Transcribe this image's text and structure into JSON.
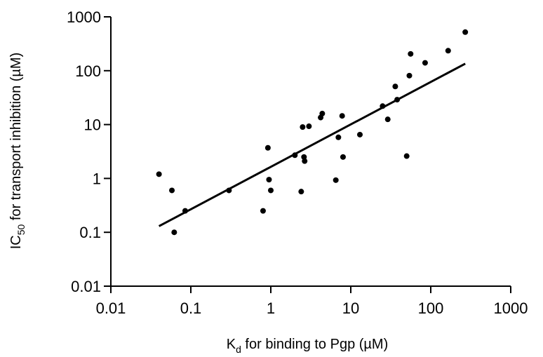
{
  "chart_data": {
    "type": "scatter",
    "title": "",
    "xlabel": {
      "main": "K",
      "sub": "d",
      "rest": " for binding to Pgp (µM)"
    },
    "ylabel": {
      "main": "IC",
      "sub": "50",
      "rest": " for transport inhibition (µM)"
    },
    "x_scale": "log",
    "y_scale": "log",
    "xlim": [
      0.01,
      1000
    ],
    "ylim": [
      0.01,
      1000
    ],
    "x_ticks": [
      0.01,
      0.1,
      1,
      10,
      100,
      1000
    ],
    "x_tick_labels": [
      "0.01",
      "0.1",
      "1",
      "10",
      "100",
      "1000"
    ],
    "y_ticks": [
      0.01,
      0.1,
      1,
      10,
      100,
      1000
    ],
    "y_tick_labels": [
      "0.01",
      "0.1",
      "1",
      "10",
      "100",
      "1000"
    ],
    "grid": false,
    "series": [
      {
        "points": [
          [
            0.04,
            1.2
          ],
          [
            0.058,
            0.6
          ],
          [
            0.062,
            0.1
          ],
          [
            0.085,
            0.25
          ],
          [
            0.3,
            0.6
          ],
          [
            0.8,
            0.25
          ],
          [
            0.92,
            3.7
          ],
          [
            0.95,
            0.95
          ],
          [
            1.0,
            0.6
          ],
          [
            2.0,
            2.7
          ],
          [
            2.4,
            0.57
          ],
          [
            2.5,
            9.0
          ],
          [
            2.6,
            2.5
          ],
          [
            2.65,
            2.1
          ],
          [
            3.0,
            9.3
          ],
          [
            4.2,
            13.5
          ],
          [
            4.4,
            16.0
          ],
          [
            6.5,
            0.93
          ],
          [
            7.0,
            5.8
          ],
          [
            7.8,
            14.5
          ],
          [
            8.0,
            2.5
          ],
          [
            13.0,
            6.5
          ],
          [
            25.0,
            22.0
          ],
          [
            29.0,
            12.5
          ],
          [
            36.0,
            51.0
          ],
          [
            38.0,
            29.0
          ],
          [
            50.0,
            2.6
          ],
          [
            54.0,
            81.0
          ],
          [
            56.0,
            205.0
          ],
          [
            85.0,
            140.0
          ],
          [
            165.0,
            235.0
          ],
          [
            270.0,
            520.0
          ]
        ]
      }
    ],
    "fit_line": {
      "x": [
        0.04,
        270.0
      ],
      "y": [
        0.13,
        135.0
      ]
    }
  }
}
